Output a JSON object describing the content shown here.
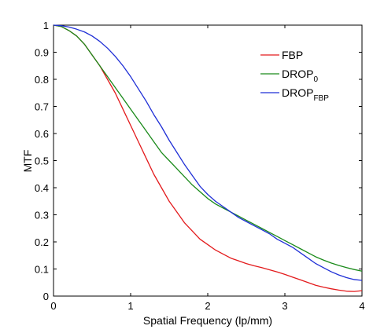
{
  "chart_data": {
    "type": "line",
    "xlabel": "Spatial Frequency (lp/mm)",
    "ylabel": "MTF",
    "xlim": [
      0,
      4
    ],
    "ylim": [
      0,
      1
    ],
    "xticks": [
      "0",
      "1",
      "2",
      "3",
      "4"
    ],
    "yticks": [
      "0",
      "0.1",
      "0.2",
      "0.3",
      "0.4",
      "0.5",
      "0.6",
      "0.7",
      "0.8",
      "0.9",
      "1"
    ],
    "grid": false,
    "legend_position": "top-right",
    "x": [
      0,
      0.1,
      0.2,
      0.3,
      0.4,
      0.5,
      0.6,
      0.7,
      0.8,
      0.9,
      1.0,
      1.1,
      1.2,
      1.3,
      1.4,
      1.5,
      1.6,
      1.7,
      1.8,
      1.9,
      2.0,
      2.1,
      2.2,
      2.3,
      2.4,
      2.5,
      2.6,
      2.7,
      2.8,
      2.9,
      3.0,
      3.1,
      3.2,
      3.3,
      3.4,
      3.5,
      3.6,
      3.7,
      3.8,
      3.9,
      4.0
    ],
    "series": [
      {
        "name": "FBP",
        "label_main": "FBP",
        "label_sub": "",
        "color": "#e31a1c",
        "values": [
          1.0,
          0.995,
          0.98,
          0.96,
          0.93,
          0.89,
          0.85,
          0.8,
          0.75,
          0.69,
          0.63,
          0.57,
          0.51,
          0.45,
          0.4,
          0.35,
          0.31,
          0.27,
          0.24,
          0.21,
          0.19,
          0.17,
          0.155,
          0.14,
          0.13,
          0.12,
          0.112,
          0.105,
          0.097,
          0.089,
          0.08,
          0.07,
          0.06,
          0.05,
          0.04,
          0.033,
          0.027,
          0.022,
          0.018,
          0.017,
          0.02
        ]
      },
      {
        "name": "DROP0",
        "label_main": "DROP",
        "label_sub": "0",
        "color": "#1a8a1a",
        "values": [
          1.0,
          0.995,
          0.98,
          0.96,
          0.93,
          0.89,
          0.85,
          0.81,
          0.77,
          0.73,
          0.69,
          0.65,
          0.61,
          0.57,
          0.53,
          0.5,
          0.47,
          0.44,
          0.41,
          0.385,
          0.36,
          0.34,
          0.325,
          0.31,
          0.295,
          0.28,
          0.265,
          0.25,
          0.235,
          0.22,
          0.205,
          0.19,
          0.175,
          0.16,
          0.145,
          0.133,
          0.122,
          0.113,
          0.105,
          0.098,
          0.092
        ]
      },
      {
        "name": "DROPFBP",
        "label_main": "DROP",
        "label_sub": "FBP",
        "color": "#1f2fd6",
        "values": [
          1.0,
          0.998,
          0.993,
          0.985,
          0.975,
          0.96,
          0.94,
          0.915,
          0.885,
          0.85,
          0.81,
          0.765,
          0.72,
          0.67,
          0.625,
          0.575,
          0.53,
          0.485,
          0.445,
          0.405,
          0.375,
          0.35,
          0.33,
          0.31,
          0.29,
          0.275,
          0.26,
          0.245,
          0.23,
          0.21,
          0.195,
          0.18,
          0.16,
          0.14,
          0.12,
          0.105,
          0.09,
          0.078,
          0.068,
          0.061,
          0.058
        ]
      }
    ]
  }
}
